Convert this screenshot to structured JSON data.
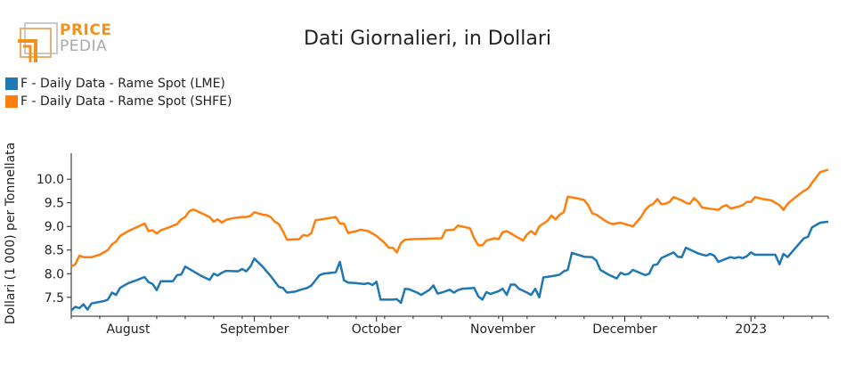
{
  "logo": {
    "top": "PRICE",
    "bottom": "PEDIA",
    "top_color": "#f0921e",
    "bottom_color": "#a7a9ac"
  },
  "chart_data": {
    "type": "line",
    "title": "Dati Giornalieri, in Dollari",
    "xlabel": "",
    "ylabel": "Dollari (1 000) per Tonnellata",
    "x_range": [
      "2022-07-18",
      "2023-01-20"
    ],
    "ylim": [
      7.1,
      10.55
    ],
    "yticks": [
      7.5,
      8.0,
      8.5,
      9.0,
      9.5,
      10.0
    ],
    "xticks": [
      {
        "date": "2022-08-01",
        "label": "August"
      },
      {
        "date": "2022-09-01",
        "label": "September"
      },
      {
        "date": "2022-10-01",
        "label": "October"
      },
      {
        "date": "2022-11-01",
        "label": "November"
      },
      {
        "date": "2022-12-01",
        "label": "December"
      },
      {
        "date": "2023-01-01",
        "label": "2023"
      }
    ],
    "grid": false,
    "legend_position": "top-left",
    "series": [
      {
        "name": "F - Daily Data - Rame Spot (LME)",
        "color": "#1f77b4",
        "points": [
          [
            "2022-07-18",
            7.22
          ],
          [
            "2022-07-19",
            7.3
          ],
          [
            "2022-07-20",
            7.27
          ],
          [
            "2022-07-21",
            7.35
          ],
          [
            "2022-07-22",
            7.24
          ],
          [
            "2022-07-23",
            7.37
          ],
          [
            "2022-07-26",
            7.42
          ],
          [
            "2022-07-27",
            7.45
          ],
          [
            "2022-07-28",
            7.6
          ],
          [
            "2022-07-29",
            7.55
          ],
          [
            "2022-07-30",
            7.7
          ],
          [
            "2022-08-01",
            7.8
          ],
          [
            "2022-08-03",
            7.86
          ],
          [
            "2022-08-05",
            7.93
          ],
          [
            "2022-08-06",
            7.82
          ],
          [
            "2022-08-07",
            7.78
          ],
          [
            "2022-08-08",
            7.65
          ],
          [
            "2022-08-09",
            7.84
          ],
          [
            "2022-08-12",
            7.84
          ],
          [
            "2022-08-13",
            7.97
          ],
          [
            "2022-08-14",
            7.98
          ],
          [
            "2022-08-15",
            8.15
          ],
          [
            "2022-08-17",
            8.05
          ],
          [
            "2022-08-19",
            7.95
          ],
          [
            "2022-08-21",
            7.87
          ],
          [
            "2022-08-22",
            8.0
          ],
          [
            "2022-08-23",
            7.96
          ],
          [
            "2022-08-24",
            8.02
          ],
          [
            "2022-08-25",
            8.06
          ],
          [
            "2022-08-28",
            8.05
          ],
          [
            "2022-08-29",
            8.1
          ],
          [
            "2022-08-30",
            8.05
          ],
          [
            "2022-08-31",
            8.15
          ],
          [
            "2022-09-01",
            8.32
          ],
          [
            "2022-09-03",
            8.15
          ],
          [
            "2022-09-05",
            7.95
          ],
          [
            "2022-09-07",
            7.72
          ],
          [
            "2022-09-08",
            7.7
          ],
          [
            "2022-09-09",
            7.6
          ],
          [
            "2022-09-11",
            7.62
          ],
          [
            "2022-09-12",
            7.65
          ],
          [
            "2022-09-14",
            7.7
          ],
          [
            "2022-09-15",
            7.75
          ],
          [
            "2022-09-17",
            7.97
          ],
          [
            "2022-09-18",
            8.0
          ],
          [
            "2022-09-21",
            8.03
          ],
          [
            "2022-09-22",
            8.25
          ],
          [
            "2022-09-23",
            7.86
          ],
          [
            "2022-09-24",
            7.81
          ],
          [
            "2022-09-26",
            7.8
          ],
          [
            "2022-09-28",
            7.78
          ],
          [
            "2022-09-29",
            7.8
          ],
          [
            "2022-09-30",
            7.76
          ],
          [
            "2022-10-01",
            7.83
          ],
          [
            "2022-10-02",
            7.45
          ],
          [
            "2022-10-05",
            7.45
          ],
          [
            "2022-10-06",
            7.46
          ],
          [
            "2022-10-07",
            7.38
          ],
          [
            "2022-10-08",
            7.68
          ],
          [
            "2022-10-09",
            7.67
          ],
          [
            "2022-10-11",
            7.6
          ],
          [
            "2022-10-12",
            7.55
          ],
          [
            "2022-10-14",
            7.66
          ],
          [
            "2022-10-15",
            7.75
          ],
          [
            "2022-10-16",
            7.58
          ],
          [
            "2022-10-17",
            7.6
          ],
          [
            "2022-10-19",
            7.66
          ],
          [
            "2022-10-20",
            7.6
          ],
          [
            "2022-10-21",
            7.65
          ],
          [
            "2022-10-22",
            7.68
          ],
          [
            "2022-10-25",
            7.7
          ],
          [
            "2022-10-26",
            7.52
          ],
          [
            "2022-10-27",
            7.45
          ],
          [
            "2022-10-28",
            7.61
          ],
          [
            "2022-10-29",
            7.57
          ],
          [
            "2022-10-31",
            7.63
          ],
          [
            "2022-11-01",
            7.68
          ],
          [
            "2022-11-02",
            7.55
          ],
          [
            "2022-11-03",
            7.77
          ],
          [
            "2022-11-04",
            7.77
          ],
          [
            "2022-11-05",
            7.68
          ],
          [
            "2022-11-07",
            7.6
          ],
          [
            "2022-11-08",
            7.55
          ],
          [
            "2022-11-09",
            7.68
          ],
          [
            "2022-11-10",
            7.5
          ],
          [
            "2022-11-11",
            7.92
          ],
          [
            "2022-11-14",
            7.96
          ],
          [
            "2022-11-15",
            7.98
          ],
          [
            "2022-11-16",
            8.05
          ],
          [
            "2022-11-17",
            8.08
          ],
          [
            "2022-11-18",
            8.44
          ],
          [
            "2022-11-21",
            8.36
          ],
          [
            "2022-11-23",
            8.35
          ],
          [
            "2022-11-24",
            8.28
          ],
          [
            "2022-11-25",
            8.08
          ],
          [
            "2022-11-27",
            7.98
          ],
          [
            "2022-11-29",
            7.9
          ],
          [
            "2022-11-30",
            8.02
          ],
          [
            "2022-12-01",
            7.98
          ],
          [
            "2022-12-02",
            8.0
          ],
          [
            "2022-12-03",
            8.08
          ],
          [
            "2022-12-06",
            7.97
          ],
          [
            "2022-12-07",
            8.0
          ],
          [
            "2022-12-08",
            8.18
          ],
          [
            "2022-12-09",
            8.2
          ],
          [
            "2022-12-10",
            8.33
          ],
          [
            "2022-12-13",
            8.45
          ],
          [
            "2022-12-14",
            8.36
          ],
          [
            "2022-12-15",
            8.35
          ],
          [
            "2022-12-16",
            8.55
          ],
          [
            "2022-12-19",
            8.43
          ],
          [
            "2022-12-21",
            8.38
          ],
          [
            "2022-12-22",
            8.42
          ],
          [
            "2022-12-23",
            8.38
          ],
          [
            "2022-12-24",
            8.25
          ],
          [
            "2022-12-26",
            8.32
          ],
          [
            "2022-12-27",
            8.35
          ],
          [
            "2022-12-28",
            8.33
          ],
          [
            "2022-12-29",
            8.35
          ],
          [
            "2022-12-30",
            8.33
          ],
          [
            "2022-12-31",
            8.37
          ],
          [
            "2023-01-01",
            8.45
          ],
          [
            "2023-01-02",
            8.4
          ],
          [
            "2023-01-05",
            8.4
          ],
          [
            "2023-01-07",
            8.4
          ],
          [
            "2023-01-08",
            8.2
          ],
          [
            "2023-01-09",
            8.42
          ],
          [
            "2023-01-10",
            8.35
          ],
          [
            "2023-01-12",
            8.55
          ],
          [
            "2023-01-14",
            8.75
          ],
          [
            "2023-01-15",
            8.78
          ],
          [
            "2023-01-16",
            8.98
          ],
          [
            "2023-01-18",
            9.08
          ],
          [
            "2023-01-20",
            9.1
          ]
        ]
      },
      {
        "name": "F - Daily Data - Rame Spot (SHFE)",
        "color": "#ff7f0e",
        "points": [
          [
            "2022-07-18",
            8.15
          ],
          [
            "2022-07-19",
            8.2
          ],
          [
            "2022-07-20",
            8.38
          ],
          [
            "2022-07-21",
            8.35
          ],
          [
            "2022-07-23",
            8.35
          ],
          [
            "2022-07-25",
            8.4
          ],
          [
            "2022-07-27",
            8.5
          ],
          [
            "2022-07-28",
            8.62
          ],
          [
            "2022-07-29",
            8.68
          ],
          [
            "2022-07-30",
            8.8
          ],
          [
            "2022-08-01",
            8.9
          ],
          [
            "2022-08-03",
            8.98
          ],
          [
            "2022-08-05",
            9.06
          ],
          [
            "2022-08-06",
            8.9
          ],
          [
            "2022-08-07",
            8.92
          ],
          [
            "2022-08-08",
            8.85
          ],
          [
            "2022-08-09",
            8.92
          ],
          [
            "2022-08-11",
            8.98
          ],
          [
            "2022-08-13",
            9.05
          ],
          [
            "2022-08-14",
            9.15
          ],
          [
            "2022-08-15",
            9.2
          ],
          [
            "2022-08-16",
            9.32
          ],
          [
            "2022-08-17",
            9.36
          ],
          [
            "2022-08-19",
            9.28
          ],
          [
            "2022-08-21",
            9.2
          ],
          [
            "2022-08-22",
            9.1
          ],
          [
            "2022-08-23",
            9.15
          ],
          [
            "2022-08-24",
            9.08
          ],
          [
            "2022-08-25",
            9.14
          ],
          [
            "2022-08-27",
            9.18
          ],
          [
            "2022-08-29",
            9.2
          ],
          [
            "2022-08-30",
            9.2
          ],
          [
            "2022-08-31",
            9.22
          ],
          [
            "2022-09-01",
            9.3
          ],
          [
            "2022-09-03",
            9.25
          ],
          [
            "2022-09-04",
            9.24
          ],
          [
            "2022-09-05",
            9.2
          ],
          [
            "2022-09-06",
            9.1
          ],
          [
            "2022-09-07",
            9.05
          ],
          [
            "2022-09-08",
            8.9
          ],
          [
            "2022-09-09",
            8.72
          ],
          [
            "2022-09-12",
            8.73
          ],
          [
            "2022-09-13",
            8.82
          ],
          [
            "2022-09-14",
            8.8
          ],
          [
            "2022-09-15",
            8.86
          ],
          [
            "2022-09-16",
            9.13
          ],
          [
            "2022-09-19",
            9.17
          ],
          [
            "2022-09-21",
            9.2
          ],
          [
            "2022-09-22",
            9.06
          ],
          [
            "2022-09-23",
            9.06
          ],
          [
            "2022-09-24",
            8.86
          ],
          [
            "2022-09-26",
            8.9
          ],
          [
            "2022-09-27",
            8.93
          ],
          [
            "2022-09-29",
            8.9
          ],
          [
            "2022-10-01",
            8.8
          ],
          [
            "2022-10-03",
            8.65
          ],
          [
            "2022-10-04",
            8.55
          ],
          [
            "2022-10-05",
            8.55
          ],
          [
            "2022-10-06",
            8.45
          ],
          [
            "2022-10-07",
            8.65
          ],
          [
            "2022-10-08",
            8.72
          ],
          [
            "2022-10-10",
            8.73
          ],
          [
            "2022-10-17",
            8.75
          ],
          [
            "2022-10-18",
            8.92
          ],
          [
            "2022-10-20",
            8.93
          ],
          [
            "2022-10-21",
            9.02
          ],
          [
            "2022-10-23",
            8.98
          ],
          [
            "2022-10-24",
            8.96
          ],
          [
            "2022-10-25",
            8.75
          ],
          [
            "2022-10-26",
            8.6
          ],
          [
            "2022-10-27",
            8.6
          ],
          [
            "2022-10-28",
            8.7
          ],
          [
            "2022-10-30",
            8.75
          ],
          [
            "2022-10-31",
            8.73
          ],
          [
            "2022-11-01",
            8.88
          ],
          [
            "2022-11-02",
            8.9
          ],
          [
            "2022-11-04",
            8.8
          ],
          [
            "2022-11-06",
            8.7
          ],
          [
            "2022-11-07",
            8.83
          ],
          [
            "2022-11-08",
            8.9
          ],
          [
            "2022-11-09",
            8.83
          ],
          [
            "2022-11-10",
            9.0
          ],
          [
            "2022-11-12",
            9.12
          ],
          [
            "2022-11-13",
            9.23
          ],
          [
            "2022-11-14",
            9.15
          ],
          [
            "2022-11-15",
            9.25
          ],
          [
            "2022-11-16",
            9.3
          ],
          [
            "2022-11-17",
            9.63
          ],
          [
            "2022-11-19",
            9.6
          ],
          [
            "2022-11-21",
            9.56
          ],
          [
            "2022-11-22",
            9.45
          ],
          [
            "2022-11-23",
            9.28
          ],
          [
            "2022-11-24",
            9.25
          ],
          [
            "2022-11-26",
            9.13
          ],
          [
            "2022-11-27",
            9.08
          ],
          [
            "2022-11-28",
            9.05
          ],
          [
            "2022-11-30",
            9.08
          ],
          [
            "2022-12-01",
            9.05
          ],
          [
            "2022-12-03",
            9.0
          ],
          [
            "2022-12-05",
            9.2
          ],
          [
            "2022-12-06",
            9.35
          ],
          [
            "2022-12-07",
            9.43
          ],
          [
            "2022-12-08",
            9.48
          ],
          [
            "2022-12-09",
            9.58
          ],
          [
            "2022-12-10",
            9.47
          ],
          [
            "2022-12-11",
            9.48
          ],
          [
            "2022-12-12",
            9.52
          ],
          [
            "2022-12-13",
            9.62
          ],
          [
            "2022-12-15",
            9.55
          ],
          [
            "2022-12-16",
            9.5
          ],
          [
            "2022-12-17",
            9.48
          ],
          [
            "2022-12-18",
            9.6
          ],
          [
            "2022-12-19",
            9.52
          ],
          [
            "2022-12-20",
            9.4
          ],
          [
            "2022-12-24",
            9.35
          ],
          [
            "2022-12-25",
            9.42
          ],
          [
            "2022-12-26",
            9.45
          ],
          [
            "2022-12-27",
            9.38
          ],
          [
            "2022-12-29",
            9.42
          ],
          [
            "2022-12-30",
            9.45
          ],
          [
            "2022-12-31",
            9.52
          ],
          [
            "2023-01-01",
            9.52
          ],
          [
            "2023-01-02",
            9.62
          ],
          [
            "2023-01-04",
            9.58
          ],
          [
            "2023-01-06",
            9.55
          ],
          [
            "2023-01-07",
            9.5
          ],
          [
            "2023-01-08",
            9.45
          ],
          [
            "2023-01-09",
            9.35
          ],
          [
            "2023-01-10",
            9.48
          ],
          [
            "2023-01-12",
            9.62
          ],
          [
            "2023-01-14",
            9.75
          ],
          [
            "2023-01-15",
            9.8
          ],
          [
            "2023-01-16",
            9.92
          ],
          [
            "2023-01-18",
            10.15
          ],
          [
            "2023-01-20",
            10.2
          ]
        ]
      }
    ]
  }
}
